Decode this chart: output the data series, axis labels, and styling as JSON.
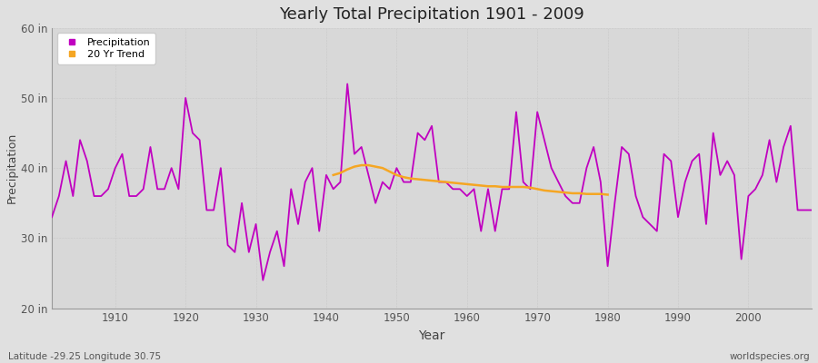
{
  "title": "Yearly Total Precipitation 1901 - 2009",
  "xlabel": "Year",
  "ylabel": "Precipitation",
  "bg_color": "#e0e0e0",
  "plot_bg_color": "#d8d8d8",
  "precip_color": "#c000c0",
  "trend_color": "#f5a623",
  "ylim": [
    20,
    60
  ],
  "yticks": [
    20,
    30,
    40,
    50,
    60
  ],
  "ytick_labels": [
    "20 in",
    "30 in",
    "40 in",
    "50 in",
    "60 in"
  ],
  "xlim": [
    1901,
    2009
  ],
  "xticks": [
    1910,
    1920,
    1930,
    1940,
    1950,
    1960,
    1970,
    1980,
    1990,
    2000
  ],
  "footer_left": "Latitude -29.25 Longitude 30.75",
  "footer_right": "worldspecies.org",
  "years": [
    1901,
    1902,
    1903,
    1904,
    1905,
    1906,
    1907,
    1908,
    1909,
    1910,
    1911,
    1912,
    1913,
    1914,
    1915,
    1916,
    1917,
    1918,
    1919,
    1920,
    1921,
    1922,
    1923,
    1924,
    1925,
    1926,
    1927,
    1928,
    1929,
    1930,
    1931,
    1932,
    1933,
    1934,
    1935,
    1936,
    1937,
    1938,
    1939,
    1940,
    1941,
    1942,
    1943,
    1944,
    1945,
    1946,
    1947,
    1948,
    1949,
    1950,
    1951,
    1952,
    1953,
    1954,
    1955,
    1956,
    1957,
    1958,
    1959,
    1960,
    1961,
    1962,
    1963,
    1964,
    1965,
    1966,
    1967,
    1968,
    1969,
    1970,
    1971,
    1972,
    1973,
    1974,
    1975,
    1976,
    1977,
    1978,
    1979,
    1980,
    1981,
    1982,
    1983,
    1984,
    1985,
    1986,
    1987,
    1988,
    1989,
    1990,
    1991,
    1992,
    1993,
    1994,
    1995,
    1996,
    1997,
    1998,
    1999,
    2000,
    2001,
    2002,
    2003,
    2004,
    2005,
    2006,
    2007,
    2008,
    2009
  ],
  "precip": [
    33,
    36,
    41,
    36,
    44,
    41,
    36,
    36,
    37,
    40,
    42,
    36,
    36,
    37,
    43,
    37,
    37,
    40,
    37,
    50,
    45,
    44,
    34,
    34,
    40,
    29,
    28,
    35,
    28,
    32,
    24,
    28,
    31,
    26,
    37,
    32,
    38,
    40,
    31,
    39,
    37,
    38,
    52,
    42,
    43,
    39,
    35,
    38,
    37,
    40,
    38,
    38,
    45,
    44,
    46,
    38,
    38,
    37,
    37,
    36,
    37,
    31,
    37,
    31,
    37,
    37,
    48,
    38,
    37,
    48,
    44,
    40,
    38,
    36,
    35,
    35,
    40,
    43,
    38,
    26,
    35,
    43,
    42,
    36,
    33,
    32,
    31,
    42,
    41,
    33,
    38,
    41,
    42,
    32,
    45,
    39,
    41,
    39,
    27,
    36,
    37,
    39,
    44,
    38,
    43,
    46,
    34,
    34,
    34
  ],
  "trend_years": [
    1941,
    1942,
    1943,
    1944,
    1945,
    1946,
    1947,
    1948,
    1949,
    1950,
    1951,
    1952,
    1953,
    1954,
    1955,
    1956,
    1957,
    1958,
    1959,
    1960,
    1961,
    1962,
    1963,
    1964,
    1965,
    1966,
    1967,
    1968,
    1969,
    1970,
    1971,
    1972,
    1973,
    1974,
    1975,
    1976,
    1977,
    1978,
    1979,
    1980
  ],
  "trend": [
    39.0,
    39.3,
    39.8,
    40.2,
    40.4,
    40.4,
    40.2,
    40.0,
    39.5,
    39.0,
    38.7,
    38.5,
    38.4,
    38.3,
    38.2,
    38.1,
    38.0,
    37.9,
    37.8,
    37.7,
    37.6,
    37.5,
    37.4,
    37.4,
    37.3,
    37.3,
    37.3,
    37.3,
    37.2,
    37.0,
    36.8,
    36.7,
    36.6,
    36.5,
    36.4,
    36.4,
    36.3,
    36.3,
    36.3,
    36.2
  ]
}
